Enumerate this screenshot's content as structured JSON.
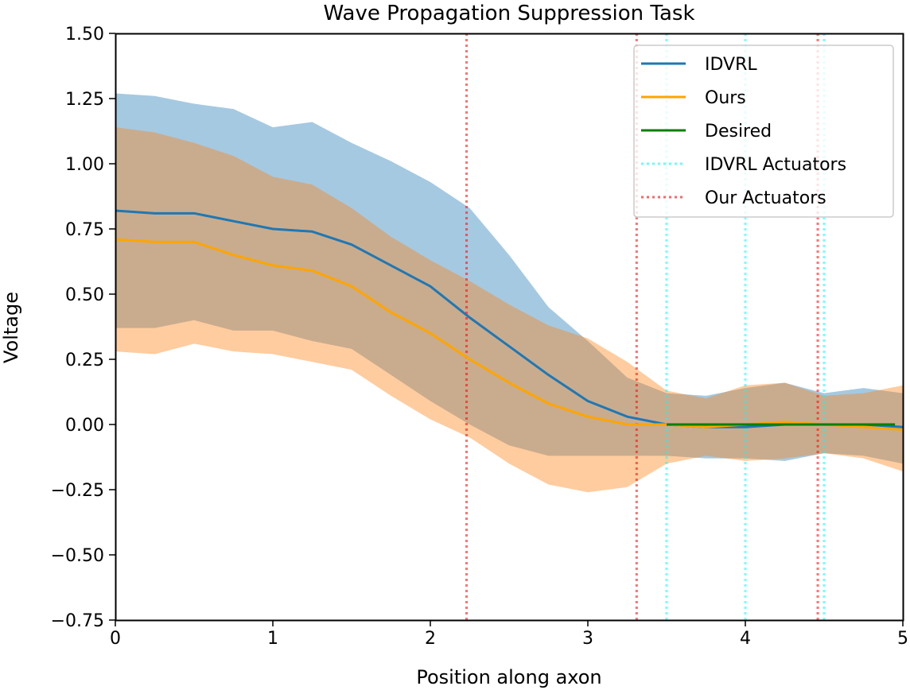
{
  "chart_data": {
    "type": "line",
    "title": "Wave Propagation Suppression Task",
    "xlabel": "Position along axon",
    "ylabel": "Voltage",
    "xlim": [
      0,
      5
    ],
    "ylim": [
      -0.75,
      1.5
    ],
    "grid": false,
    "legend_position": "top-right",
    "x_ticks": [
      0,
      1,
      2,
      3,
      4,
      5
    ],
    "x_tick_labels": [
      "0",
      "1",
      "2",
      "3",
      "4",
      "5"
    ],
    "y_ticks": [
      -0.75,
      -0.5,
      -0.25,
      0,
      0.25,
      0.5,
      0.75,
      1.0,
      1.25,
      1.5
    ],
    "y_tick_labels": [
      "−0.75",
      "−0.50",
      "−0.25",
      "0.00",
      "0.25",
      "0.50",
      "0.75",
      "1.00",
      "1.25",
      "1.50"
    ],
    "x": [
      0,
      0.25,
      0.5,
      0.75,
      1.0,
      1.25,
      1.5,
      1.75,
      2.0,
      2.25,
      2.5,
      2.75,
      3.0,
      3.25,
      3.5,
      3.75,
      4.0,
      4.25,
      4.5,
      4.75,
      5.0
    ],
    "series": [
      {
        "name": "IDVRL",
        "color": "#1f77b4",
        "band_color": "#1f77b4",
        "values": [
          0.82,
          0.81,
          0.81,
          0.78,
          0.75,
          0.74,
          0.69,
          0.61,
          0.53,
          0.41,
          0.3,
          0.19,
          0.09,
          0.03,
          0.0,
          -0.01,
          -0.01,
          0.0,
          0.0,
          0.0,
          -0.01
        ],
        "upper": [
          1.27,
          1.26,
          1.23,
          1.21,
          1.14,
          1.16,
          1.08,
          1.01,
          0.93,
          0.83,
          0.65,
          0.45,
          0.32,
          0.18,
          0.12,
          0.11,
          0.14,
          0.16,
          0.12,
          0.14,
          0.12
        ],
        "lower": [
          0.37,
          0.37,
          0.4,
          0.36,
          0.36,
          0.32,
          0.29,
          0.19,
          0.09,
          0.0,
          -0.08,
          -0.12,
          -0.12,
          -0.12,
          -0.12,
          -0.13,
          -0.13,
          -0.14,
          -0.11,
          -0.12,
          -0.15
        ]
      },
      {
        "name": "Ours",
        "color": "#ffa500",
        "band_color": "#ff7f0e",
        "values": [
          0.71,
          0.7,
          0.7,
          0.65,
          0.61,
          0.59,
          0.53,
          0.43,
          0.35,
          0.25,
          0.16,
          0.08,
          0.03,
          0.0,
          0.0,
          -0.01,
          0.0,
          0.01,
          0.0,
          -0.01,
          -0.02
        ],
        "upper": [
          1.14,
          1.12,
          1.08,
          1.03,
          0.95,
          0.92,
          0.83,
          0.72,
          0.63,
          0.55,
          0.46,
          0.38,
          0.33,
          0.24,
          0.13,
          0.1,
          0.15,
          0.16,
          0.11,
          0.12,
          0.15
        ],
        "lower": [
          0.28,
          0.27,
          0.31,
          0.28,
          0.27,
          0.24,
          0.21,
          0.11,
          0.02,
          -0.05,
          -0.15,
          -0.23,
          -0.26,
          -0.24,
          -0.15,
          -0.12,
          -0.14,
          -0.13,
          -0.11,
          -0.13,
          -0.18
        ]
      },
      {
        "name": "Desired",
        "color": "#008000",
        "x": [
          3.5,
          4.0,
          4.5,
          4.95
        ],
        "values": [
          0.0,
          0.0,
          0.0,
          0.0
        ]
      }
    ],
    "vertical_lines": [
      {
        "series": "IDVRL Actuators",
        "color": "#00ffff",
        "positions": [
          3.5,
          4.0,
          4.5
        ]
      },
      {
        "series": "Our Actuators",
        "color": "#ff0000",
        "positions": [
          2.23,
          3.31,
          4.46
        ]
      }
    ],
    "legend": [
      {
        "label": "IDVRL",
        "color": "#1f77b4",
        "style": "solid"
      },
      {
        "label": "Ours",
        "color": "#ffa500",
        "style": "solid"
      },
      {
        "label": "Desired",
        "color": "#008000",
        "style": "solid"
      },
      {
        "label": "IDVRL Actuators",
        "color": "#00ffff",
        "style": "dotted"
      },
      {
        "label": "Our Actuators",
        "color": "#ff0000",
        "style": "dotted"
      }
    ]
  }
}
